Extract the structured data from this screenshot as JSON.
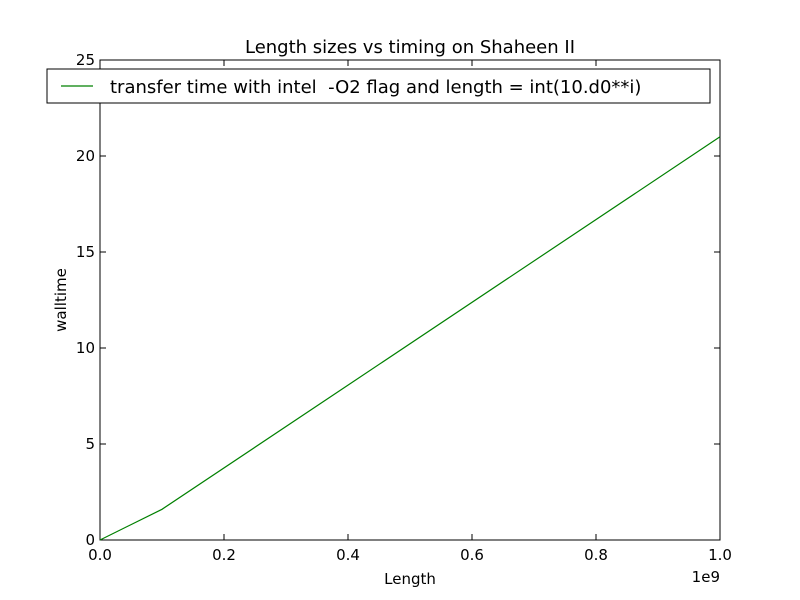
{
  "chart_data": {
    "type": "line",
    "title": "Length sizes vs timing on Shaheen II",
    "xlabel": "Length",
    "ylabel": "walltime",
    "x_offset_label": "1e9",
    "xlim": [
      0,
      1.0
    ],
    "ylim": [
      0,
      25
    ],
    "x_ticks": [
      "0.0",
      "0.2",
      "0.4",
      "0.6",
      "0.8",
      "1.0"
    ],
    "y_ticks": [
      "0",
      "5",
      "10",
      "15",
      "20",
      "25"
    ],
    "grid": false,
    "legend_position": "top",
    "series": [
      {
        "name": "transfer time with intel  -O2 flag and length = int(10.d0**i)",
        "color": "#008000",
        "x": [
          0,
          0.1,
          1.0
        ],
        "y": [
          0.0,
          1.6,
          21.0
        ]
      }
    ]
  }
}
